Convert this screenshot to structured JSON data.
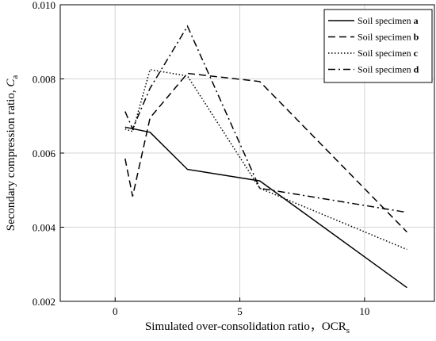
{
  "chart_data": {
    "type": "line",
    "xlabel": "Simulated over-consolidation ratio，OCR",
    "xlabel_sub": "s",
    "ylabel": "Secondary compression ratio, ",
    "ylabel_var": "C",
    "ylabel_sub": "a",
    "xlim": [
      -2.2,
      12.8
    ],
    "ylim": [
      0.002,
      0.01
    ],
    "xticks": [
      0,
      5,
      10
    ],
    "xtick_labels": [
      "0",
      "5",
      "10"
    ],
    "yticks": [
      0.002,
      0.004,
      0.006,
      0.008,
      0.01
    ],
    "ytick_labels": [
      "0.002",
      "0.004",
      "0.006",
      "0.008",
      "0.010"
    ],
    "grid": true,
    "legend_position": "top-right",
    "legend_prefix": "Soil specimen ",
    "series": [
      {
        "name": "a",
        "dash": "solid",
        "points": [
          [
            0.4,
            0.0067
          ],
          [
            1.4,
            0.00656
          ],
          [
            2.9,
            0.00556
          ],
          [
            5.8,
            0.00525
          ],
          [
            11.7,
            0.00237
          ]
        ]
      },
      {
        "name": "b",
        "dash": "dashed",
        "points": [
          [
            0.4,
            0.00585
          ],
          [
            0.7,
            0.00483
          ],
          [
            1.4,
            0.00695
          ],
          [
            2.9,
            0.00815
          ],
          [
            5.8,
            0.00793
          ],
          [
            11.7,
            0.00387
          ]
        ]
      },
      {
        "name": "c",
        "dash": "dotted",
        "points": [
          [
            0.4,
            0.00665
          ],
          [
            0.7,
            0.00658
          ],
          [
            1.4,
            0.00825
          ],
          [
            2.9,
            0.00808
          ],
          [
            5.8,
            0.00505
          ],
          [
            11.7,
            0.0034
          ]
        ]
      },
      {
        "name": "d",
        "dash": "dashdot",
        "points": [
          [
            0.4,
            0.00712
          ],
          [
            0.7,
            0.00665
          ],
          [
            1.4,
            0.00775
          ],
          [
            2.9,
            0.00942
          ],
          [
            5.8,
            0.00505
          ],
          [
            11.7,
            0.0044
          ]
        ]
      }
    ]
  }
}
